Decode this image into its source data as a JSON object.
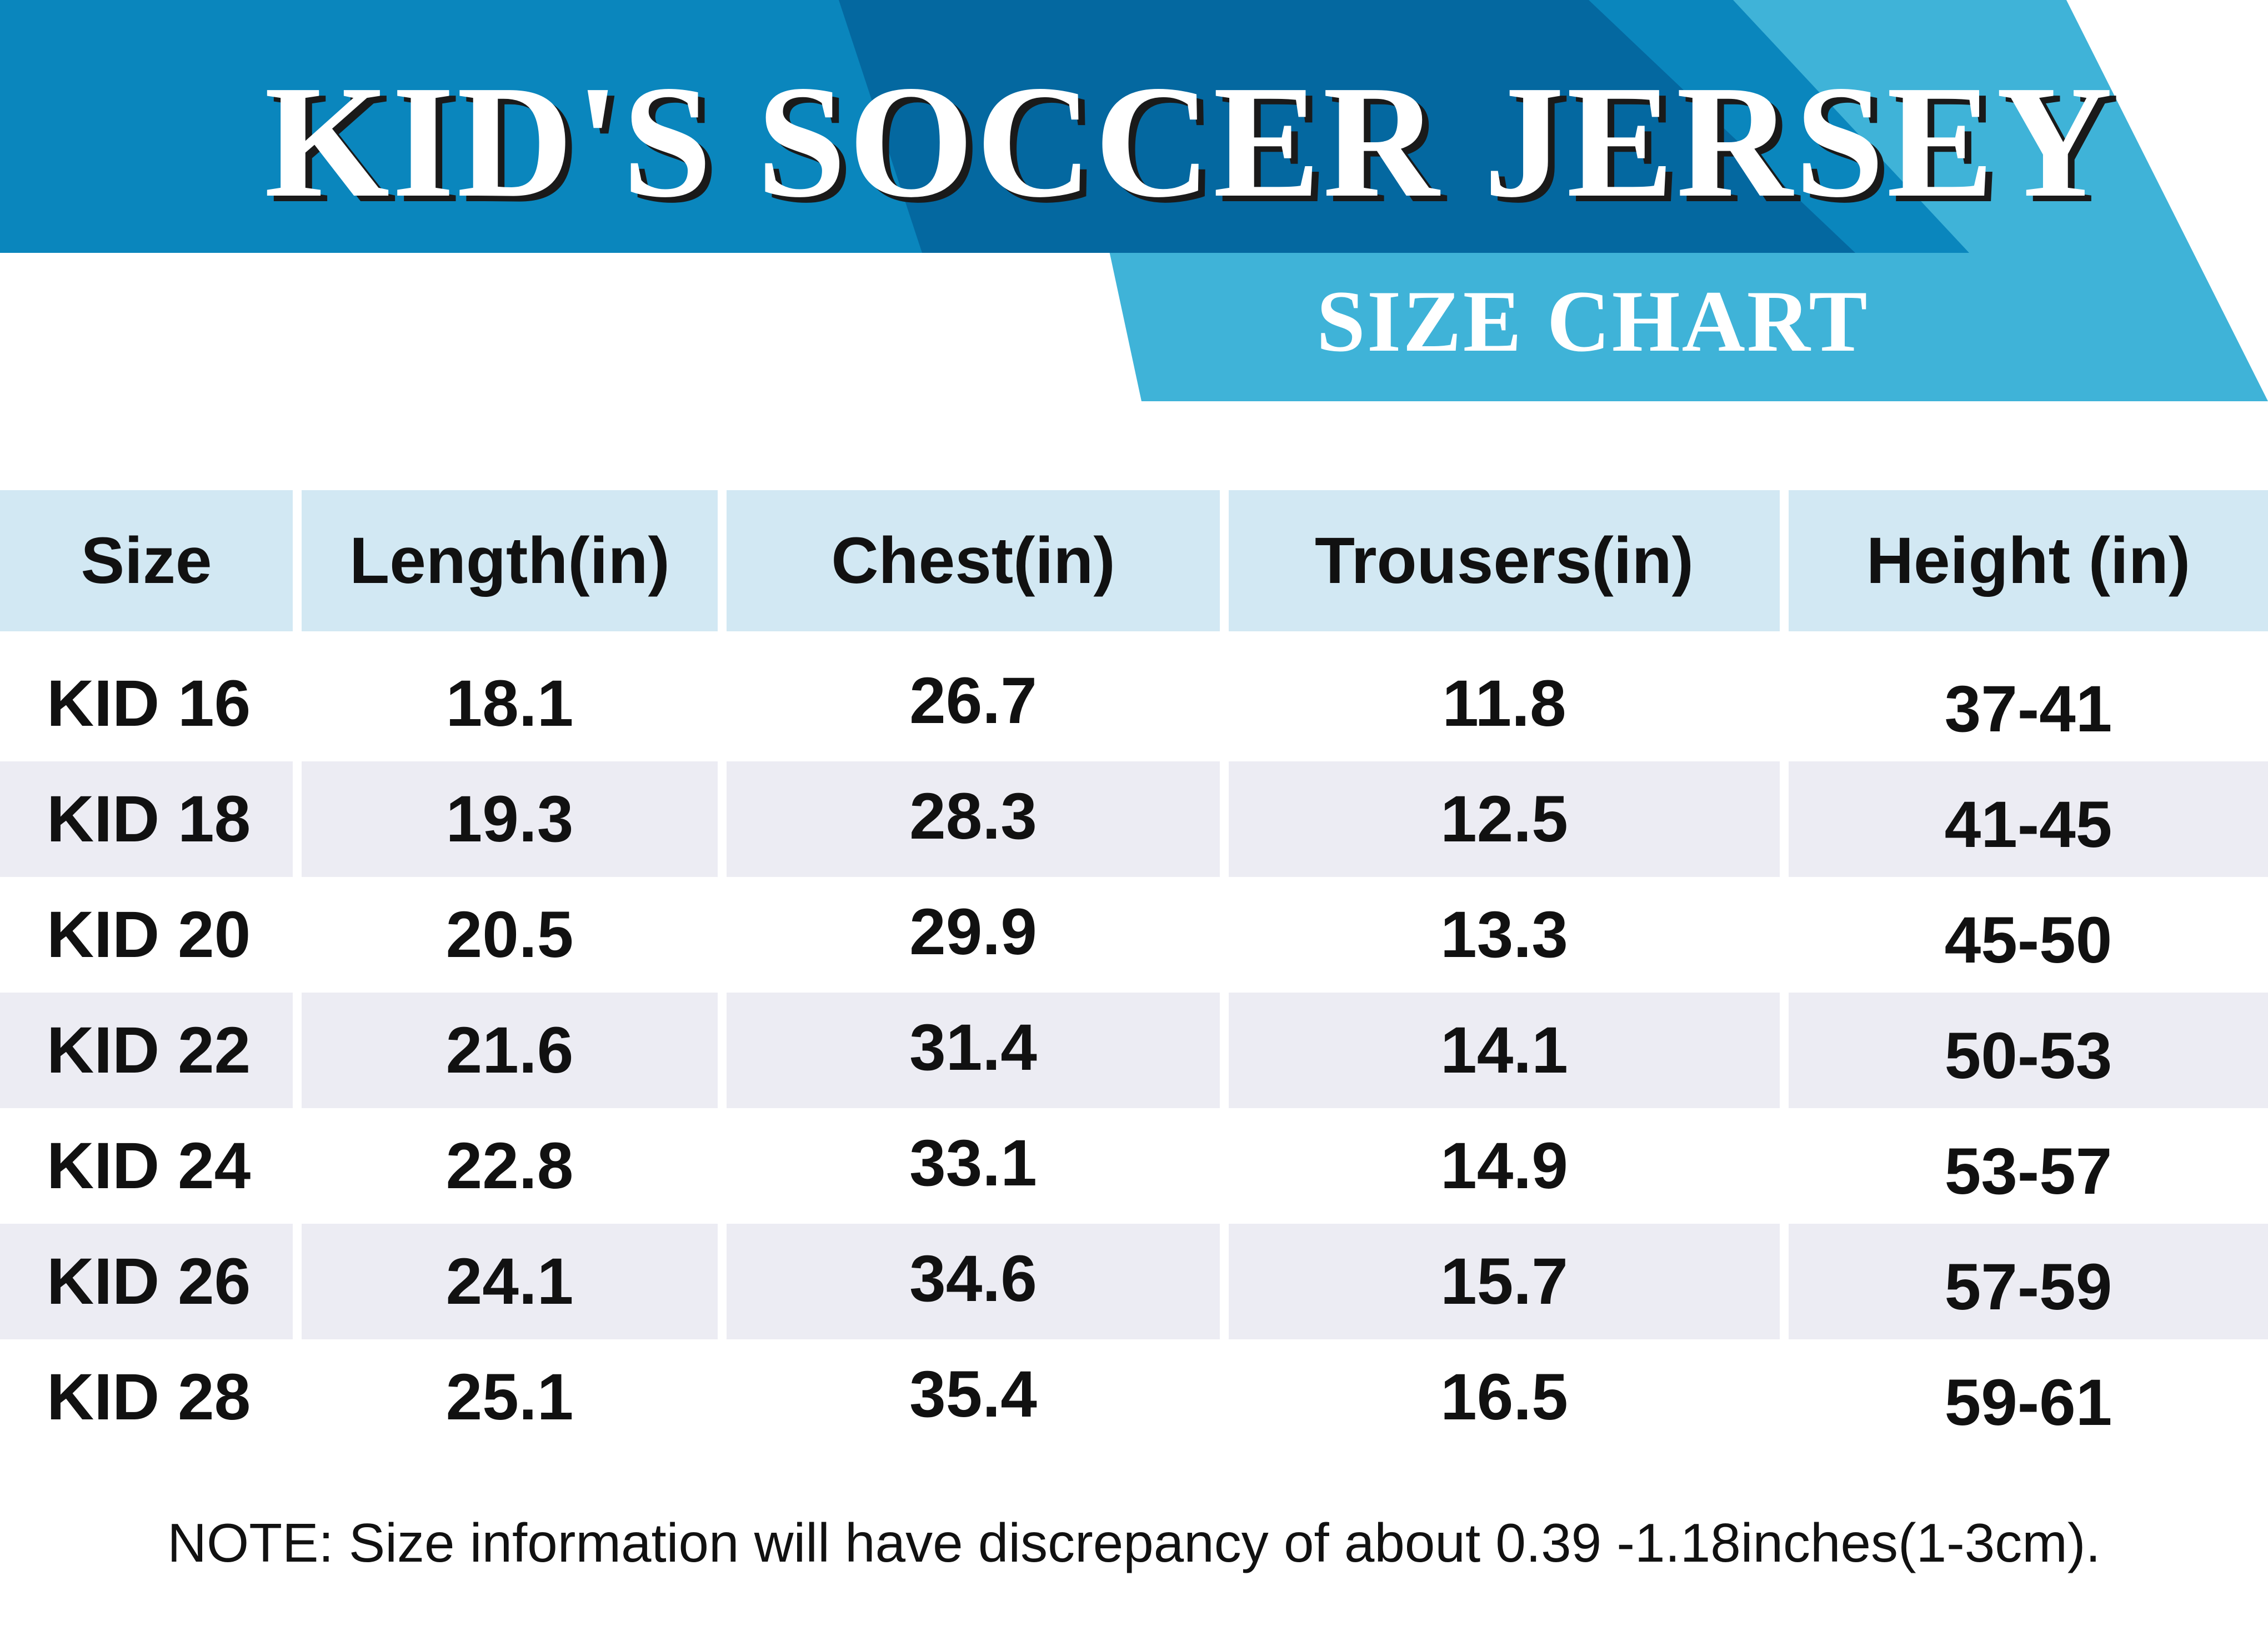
{
  "title": "KID'S SOCCER JERSEY",
  "subtitle": "SIZE CHART",
  "colors": {
    "banner_dark": "#0468a0",
    "banner_mid": "#0a86bd",
    "banner_light": "#3fb3d8",
    "header_row_bg": "#d2e8f3",
    "shaded_row_bg": "#ececf3"
  },
  "table": {
    "headers": [
      "Size",
      "Length(in)",
      "Chest(in)",
      "Trousers(in)",
      "Height (in)"
    ],
    "rows": [
      [
        "KID 16",
        "18.1",
        "26.7",
        "11.8",
        "37-41"
      ],
      [
        "KID 18",
        "19.3",
        "28.3",
        "12.5",
        "41-45"
      ],
      [
        "KID 20",
        "20.5",
        "29.9",
        "13.3",
        "45-50"
      ],
      [
        "KID 22",
        "21.6",
        "31.4",
        "14.1",
        "50-53"
      ],
      [
        "KID 24",
        "22.8",
        "33.1",
        "14.9",
        "53-57"
      ],
      [
        "KID 26",
        "24.1",
        "34.6",
        "15.7",
        "57-59"
      ],
      [
        "KID 28",
        "25.1",
        "35.4",
        "16.5",
        "59-61"
      ]
    ]
  },
  "note": "NOTE: Size information will have discrepancy of about 0.39 -1.18inches(1-3cm)."
}
